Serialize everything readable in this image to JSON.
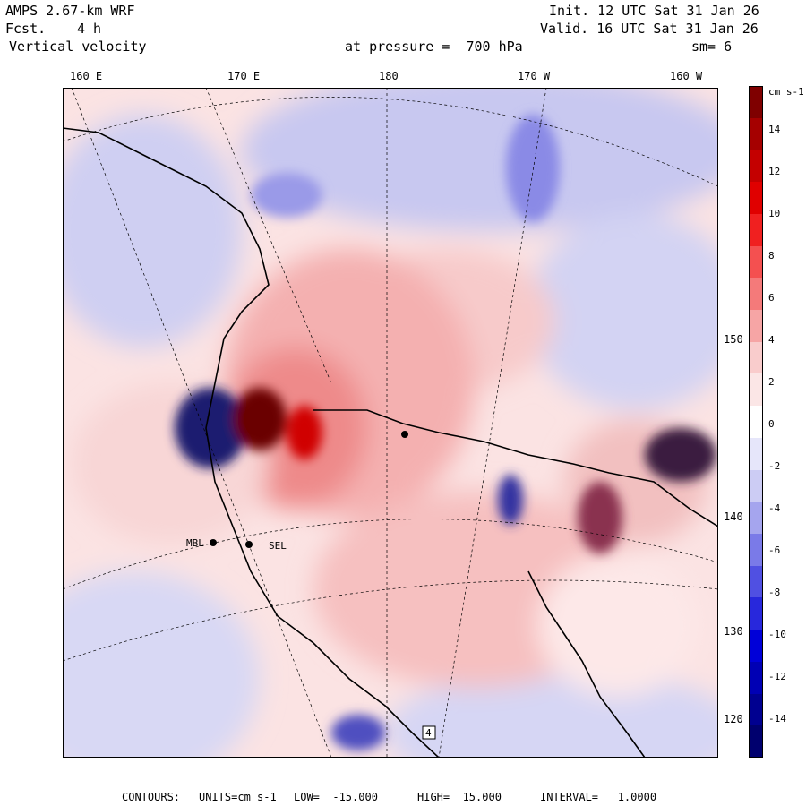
{
  "header": {
    "model": "AMPS 2.67-km WRF",
    "forecast_label": "Fcst.",
    "forecast_value": "4 h",
    "field_name": "Vertical velocity",
    "pressure_text": "at pressure =  700 hPa",
    "init_text": "Init. 12 UTC Sat 31 Jan 26",
    "valid_text": "Valid. 16 UTC Sat 31 Jan 26",
    "smoothing": "sm= 6"
  },
  "axes": {
    "top_longitudes": [
      "160 E",
      "170 E",
      "180",
      "170 W",
      "160 W"
    ],
    "right_latitudes": [
      "150 W",
      "140 W",
      "130 W",
      "120 W"
    ]
  },
  "colorbar": {
    "unit": "cm s-1",
    "labels": [
      "14",
      "12",
      "10",
      "8",
      "6",
      "4",
      "2",
      "0",
      "-2",
      "-4",
      "-6",
      "-8",
      "-10",
      "-12",
      "-14"
    ],
    "colors": [
      "#7f0000",
      "#a50000",
      "#c40000",
      "#e00000",
      "#f02020",
      "#f45050",
      "#f47a7a",
      "#f6a5a5",
      "#f9cccc",
      "#fbe6e6",
      "#ffffff",
      "#e6e6fa",
      "#ccccf4",
      "#a5a5ee",
      "#7a7ae8",
      "#5050e2",
      "#2828dc",
      "#0000d8",
      "#0000b4",
      "#000090",
      "#00006e"
    ]
  },
  "stations": [
    "MBL",
    "SEL",
    "4"
  ],
  "footer": {
    "contours_label": "CONTOURS:",
    "units": "UNITS=cm s-1",
    "low": "LOW=  -15.000",
    "high": "HIGH=  15.000",
    "interval": "INTERVAL=   1.0000"
  }
}
